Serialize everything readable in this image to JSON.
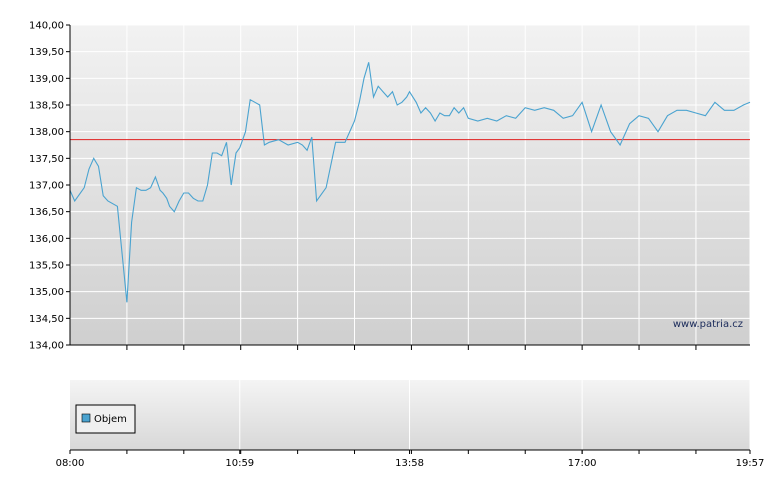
{
  "chart_data": [
    {
      "type": "line",
      "title": "",
      "xlabel": "",
      "ylabel": "",
      "ylim": [
        134.0,
        140.0
      ],
      "y_ticks": [
        "134,00",
        "134,50",
        "135,00",
        "135,50",
        "136,00",
        "136,50",
        "137,00",
        "137,50",
        "138,00",
        "138,50",
        "139,00",
        "139,50",
        "140,00"
      ],
      "x_range": [
        "08:00",
        "19:57"
      ],
      "reference_line": {
        "value": 137.85,
        "color": "#e02020"
      },
      "series_color": "#4aa3d0",
      "grid": true,
      "watermark": "www.patria.cz",
      "series": [
        {
          "x": [
            "08:00",
            "08:05",
            "08:15",
            "08:20",
            "08:25",
            "08:30",
            "08:35",
            "08:40",
            "08:50",
            "09:00",
            "09:05",
            "09:10",
            "09:15",
            "09:20",
            "09:25",
            "09:30",
            "09:35",
            "09:38",
            "09:42",
            "09:45",
            "09:50",
            "09:55",
            "10:00",
            "10:05",
            "10:10",
            "10:15",
            "10:20",
            "10:25",
            "10:30",
            "10:35",
            "10:40",
            "10:45",
            "10:50",
            "10:55",
            "10:59",
            "11:05",
            "11:10",
            "11:15",
            "11:20",
            "11:25",
            "11:30",
            "11:40",
            "11:50",
            "12:00",
            "12:05",
            "12:10",
            "12:15",
            "12:20",
            "12:30",
            "12:40",
            "12:50",
            "13:00",
            "13:05",
            "13:10",
            "13:15",
            "13:20",
            "13:25",
            "13:30",
            "13:35",
            "13:40",
            "13:45",
            "13:50",
            "13:55",
            "13:58",
            "14:05",
            "14:10",
            "14:15",
            "14:20",
            "14:25",
            "14:30",
            "14:35",
            "14:40",
            "14:45",
            "14:50",
            "14:55",
            "15:00",
            "15:10",
            "15:20",
            "15:30",
            "15:40",
            "15:50",
            "16:00",
            "16:10",
            "16:20",
            "16:30",
            "16:40",
            "16:50",
            "17:00",
            "17:10",
            "17:20",
            "17:30",
            "17:40",
            "17:50",
            "18:00",
            "18:10",
            "18:20",
            "18:30",
            "18:40",
            "18:50",
            "19:00",
            "19:10",
            "19:20",
            "19:30",
            "19:40",
            "19:50",
            "19:57"
          ],
          "y": [
            136.9,
            136.7,
            136.95,
            137.3,
            137.5,
            137.35,
            136.8,
            136.7,
            136.6,
            134.8,
            136.3,
            136.95,
            136.9,
            136.9,
            136.95,
            137.15,
            136.9,
            136.85,
            136.75,
            136.6,
            136.5,
            136.7,
            136.85,
            136.85,
            136.75,
            136.7,
            136.7,
            137.0,
            137.6,
            137.6,
            137.55,
            137.8,
            137.0,
            137.6,
            137.7,
            138.0,
            138.6,
            138.55,
            138.5,
            137.75,
            137.8,
            137.85,
            137.75,
            137.8,
            137.75,
            137.65,
            137.9,
            136.7,
            136.95,
            137.8,
            137.8,
            138.2,
            138.55,
            139.0,
            139.3,
            138.65,
            138.85,
            138.75,
            138.65,
            138.75,
            138.5,
            138.55,
            138.65,
            138.75,
            138.55,
            138.35,
            138.45,
            138.35,
            138.2,
            138.35,
            138.3,
            138.3,
            138.45,
            138.35,
            138.45,
            138.25,
            138.2,
            138.25,
            138.2,
            138.3,
            138.25,
            138.45,
            138.4,
            138.45,
            138.4,
            138.25,
            138.3,
            138.55,
            138.0,
            138.5,
            138.0,
            137.75,
            138.15,
            138.3,
            138.25,
            138.0,
            138.3,
            138.4,
            138.4,
            138.35,
            138.3,
            138.55,
            138.4,
            138.4,
            138.5,
            138.55
          ]
        }
      ]
    },
    {
      "type": "bar",
      "title": "",
      "legend": {
        "label": "Objem",
        "color": "#4aa3d0",
        "position": "left"
      },
      "x_ticks": [
        "08:00",
        "10:59",
        "13:58",
        "17:00",
        "19:57"
      ],
      "series": [
        {
          "name": "Objem",
          "values": []
        }
      ]
    }
  ]
}
